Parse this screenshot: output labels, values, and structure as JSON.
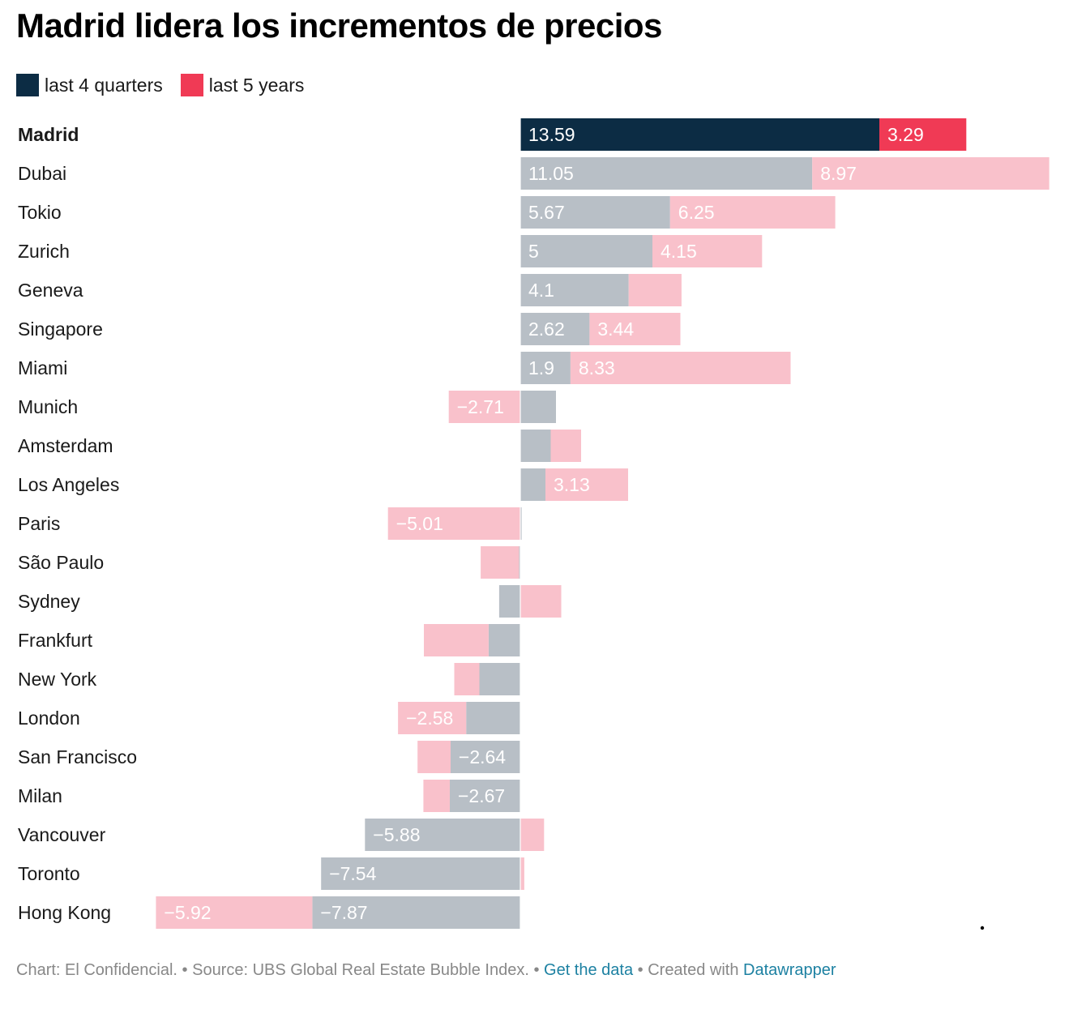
{
  "chart_data": {
    "type": "bar",
    "title": "Madrid lidera los incrementos de precios",
    "categories": [
      "Madrid",
      "Dubai",
      "Tokio",
      "Zurich",
      "Geneva",
      "Singapore",
      "Miami",
      "Munich",
      "Amsterdam",
      "Los Angeles",
      "Paris",
      "São Paulo",
      "Sydney",
      "Frankfurt",
      "New York",
      "London",
      "San Francisco",
      "Milan",
      "Vancouver",
      "Toronto",
      "Hong Kong"
    ],
    "highlight": "Madrid",
    "series": [
      {
        "name": "last 4 quarters",
        "color": "#b8bfc6",
        "highlight_color": "#0c2c44",
        "values": [
          13.59,
          11.05,
          5.67,
          5,
          4.1,
          2.62,
          1.9,
          1.35,
          1.15,
          0.95,
          0.05,
          -0.05,
          -0.8,
          -1.2,
          -1.55,
          -2.05,
          -2.64,
          -2.67,
          -5.88,
          -7.54,
          -7.87
        ],
        "labels": [
          "13.59",
          "11.05",
          "5.67",
          "5",
          "4.1",
          "2.62",
          "1.9",
          "",
          "",
          "",
          "",
          "",
          "",
          "",
          "",
          "",
          "−2.64",
          "−2.67",
          "−5.88",
          "−7.54",
          "−7.87"
        ]
      },
      {
        "name": "last 5 years",
        "color": "#f9c1cb",
        "highlight_color": "#f03a55",
        "values": [
          3.29,
          8.97,
          6.25,
          4.15,
          2,
          3.44,
          8.33,
          -2.71,
          1.15,
          3.13,
          -5.01,
          -1.45,
          1.55,
          -2.45,
          -0.95,
          -2.58,
          -1.25,
          -1.0,
          0.9,
          0.15,
          -5.92
        ],
        "labels": [
          "3.29",
          "8.97",
          "6.25",
          "4.15",
          "",
          "3.44",
          "8.33",
          "−2.71",
          "",
          "3.13",
          "−5.01",
          "",
          "",
          "",
          "",
          "−2.58",
          "",
          "",
          "",
          "",
          "−5.92"
        ]
      }
    ],
    "stacking": "diverging",
    "legend_position": "top-left"
  },
  "footer": {
    "prefix": "Chart: El Confidencial. • Source: UBS Global Real Estate Bubble Index. • ",
    "get_data": "Get the data",
    "middle": " • Created with ",
    "datawrapper": "Datawrapper"
  }
}
